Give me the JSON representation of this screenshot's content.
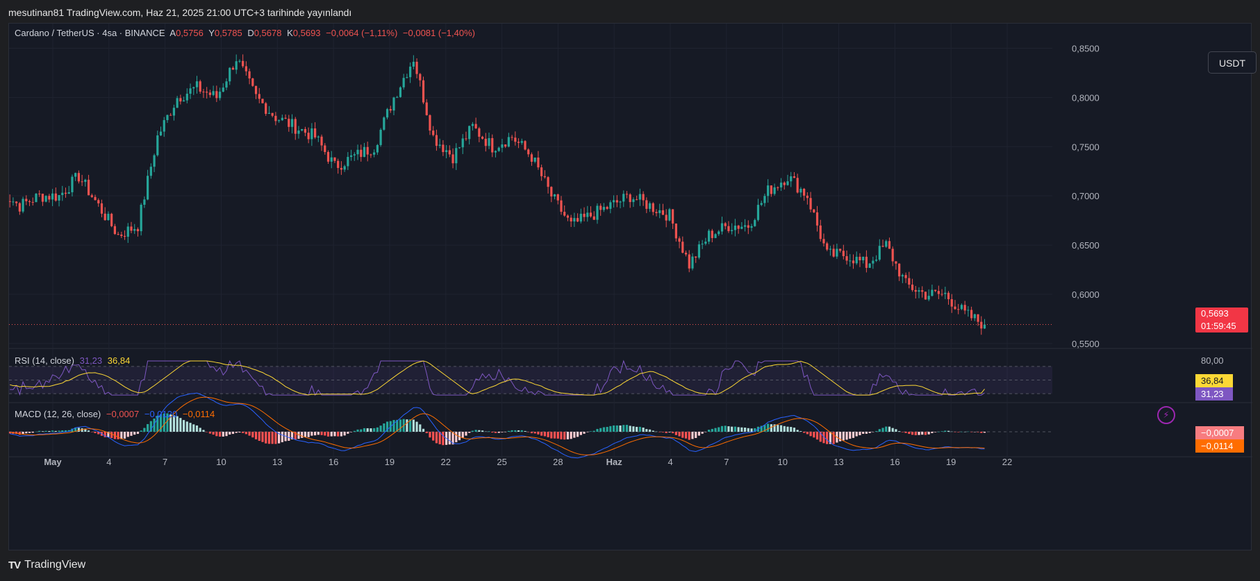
{
  "header": {
    "publish_text": "mesutinan81 TradingView.com, Haz 21, 2025 21:00 UTC+3 tarihinde yayınlandı"
  },
  "footer": {
    "brand": "TradingView",
    "logo_glyph": "TV"
  },
  "currency_button": "USDT",
  "ohlc_legend": {
    "symbol": "Cardano / TetherUS · 4sa · BINANCE",
    "open_label": "A",
    "open": "0,5756",
    "high_label": "Y",
    "high": "0,5785",
    "low_label": "D",
    "low": "0,5678",
    "close_label": "K",
    "close": "0,5693",
    "change": "−0,0064 (−1,11%)",
    "change2": "−0,0081 (−1,40%)"
  },
  "rsi_legend": {
    "name": "RSI (14, close)",
    "rsi": "31,23",
    "ma": "36,84"
  },
  "macd_legend": {
    "name": "MACD (12, 26, close)",
    "hist": "−0,0007",
    "macd": "−0,0120",
    "signal": "−0,0114"
  },
  "price_tag": {
    "price": "0,5693",
    "countdown": "01:59:45"
  },
  "rsi_tags": {
    "ma": "36,84",
    "rsi": "31,23",
    "top_label": "80,00"
  },
  "macd_tags": {
    "hist": "−0,0007",
    "signal": "−0,0114"
  },
  "colors": {
    "up": "#26a69a",
    "down": "#ef5350",
    "rsi": "#7e57c2",
    "rsi_ma": "#fdd835",
    "macd": "#2962ff",
    "signal": "#ff6d00",
    "bg": "#161a25"
  },
  "chart_data": {
    "type": "candlestick",
    "title": "Cardano / TetherUS · 4sa · BINANCE",
    "price_axis": {
      "ticks": [
        "0,8500",
        "0,8000",
        "0,7500",
        "0,7000",
        "0,6500",
        "0,6000",
        "0,5500"
      ],
      "range": [
        0.545,
        0.875
      ]
    },
    "time_axis": {
      "labels": [
        "May",
        "4",
        "7",
        "10",
        "13",
        "16",
        "19",
        "22",
        "25",
        "28",
        "Haz",
        "4",
        "7",
        "10",
        "13",
        "16",
        "19",
        "22"
      ]
    },
    "last_price": 0.5693,
    "close_path": [
      {
        "day": 0,
        "price": 0.705
      },
      {
        "day": 1,
        "price": 0.69
      },
      {
        "day": 2,
        "price": 0.7
      },
      {
        "day": 3,
        "price": 0.7
      },
      {
        "day": 4,
        "price": 0.72
      },
      {
        "day": 5,
        "price": 0.69
      },
      {
        "day": 6,
        "price": 0.66
      },
      {
        "day": 7,
        "price": 0.67
      },
      {
        "day": 8,
        "price": 0.76
      },
      {
        "day": 9,
        "price": 0.8
      },
      {
        "day": 10,
        "price": 0.81
      },
      {
        "day": 11,
        "price": 0.8
      },
      {
        "day": 12,
        "price": 0.84
      },
      {
        "day": 13,
        "price": 0.8
      },
      {
        "day": 14,
        "price": 0.78
      },
      {
        "day": 15,
        "price": 0.77
      },
      {
        "day": 16,
        "price": 0.76
      },
      {
        "day": 17,
        "price": 0.73
      },
      {
        "day": 18,
        "price": 0.74
      },
      {
        "day": 19,
        "price": 0.75
      },
      {
        "day": 20,
        "price": 0.8
      },
      {
        "day": 21,
        "price": 0.84
      },
      {
        "day": 22,
        "price": 0.76
      },
      {
        "day": 23,
        "price": 0.74
      },
      {
        "day": 24,
        "price": 0.77
      },
      {
        "day": 25,
        "price": 0.75
      },
      {
        "day": 26,
        "price": 0.76
      },
      {
        "day": 27,
        "price": 0.74
      },
      {
        "day": 28,
        "price": 0.7
      },
      {
        "day": 29,
        "price": 0.67
      },
      {
        "day": 30,
        "price": 0.68
      },
      {
        "day": 31,
        "price": 0.69
      },
      {
        "day": 32,
        "price": 0.7
      },
      {
        "day": 33,
        "price": 0.69
      },
      {
        "day": 34,
        "price": 0.68
      },
      {
        "day": 35,
        "price": 0.63
      },
      {
        "day": 36,
        "price": 0.66
      },
      {
        "day": 37,
        "price": 0.67
      },
      {
        "day": 38,
        "price": 0.67
      },
      {
        "day": 39,
        "price": 0.705
      },
      {
        "day": 40,
        "price": 0.72
      },
      {
        "day": 41,
        "price": 0.7
      },
      {
        "day": 42,
        "price": 0.64
      },
      {
        "day": 43,
        "price": 0.64
      },
      {
        "day": 44,
        "price": 0.63
      },
      {
        "day": 45,
        "price": 0.65
      },
      {
        "day": 46,
        "price": 0.61
      },
      {
        "day": 47,
        "price": 0.6
      },
      {
        "day": 48,
        "price": 0.6
      },
      {
        "day": 49,
        "price": 0.58
      },
      {
        "day": 50,
        "price": 0.5693
      }
    ],
    "rsi": {
      "range": [
        0,
        100
      ],
      "bands": [
        30,
        50,
        70
      ],
      "last_rsi": 31.23,
      "last_ma": 36.84
    },
    "macd": {
      "last_macd": -0.012,
      "last_signal": -0.0114,
      "last_hist": -0.0007
    }
  }
}
